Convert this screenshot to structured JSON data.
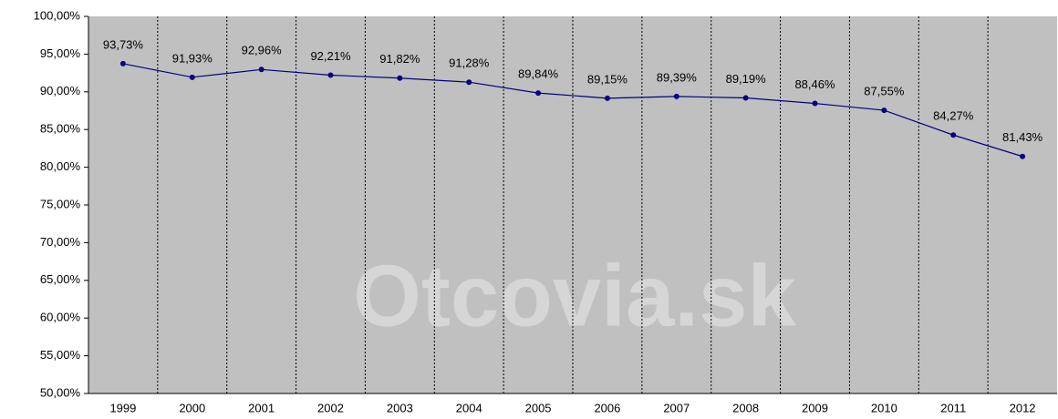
{
  "chart_data": {
    "type": "line",
    "annotation": "Otcovia.sk",
    "categories": [
      "1999",
      "2000",
      "2001",
      "2002",
      "2003",
      "2004",
      "2005",
      "2006",
      "2007",
      "2008",
      "2009",
      "2010",
      "2011",
      "2012"
    ],
    "series": [
      {
        "color": "#000080",
        "values": [
          93.73,
          91.93,
          92.96,
          92.21,
          91.82,
          91.28,
          89.84,
          89.15,
          89.39,
          89.19,
          88.46,
          87.55,
          84.27,
          81.43
        ],
        "value_labels": [
          "93,73%",
          "91,93%",
          "92,96%",
          "92,21%",
          "91,82%",
          "91,28%",
          "89,84%",
          "89,15%",
          "89,39%",
          "89,19%",
          "88,46%",
          "87,55%",
          "84,27%",
          "81,43%"
        ]
      }
    ],
    "ylim": [
      50,
      100
    ],
    "yticks": [
      {
        "value": 50,
        "label": "50,00%"
      },
      {
        "value": 55,
        "label": "55,00%"
      },
      {
        "value": 60,
        "label": "60,00%"
      },
      {
        "value": 65,
        "label": "65,00%"
      },
      {
        "value": 70,
        "label": "70,00%"
      },
      {
        "value": 75,
        "label": "75,00%"
      },
      {
        "value": 80,
        "label": "80,00%"
      },
      {
        "value": 85,
        "label": "85,00%"
      },
      {
        "value": 90,
        "label": "90,00%"
      },
      {
        "value": 95,
        "label": "95,00%"
      },
      {
        "value": 100,
        "label": "100,00%"
      }
    ],
    "plot_background": "#c0c0c0"
  }
}
